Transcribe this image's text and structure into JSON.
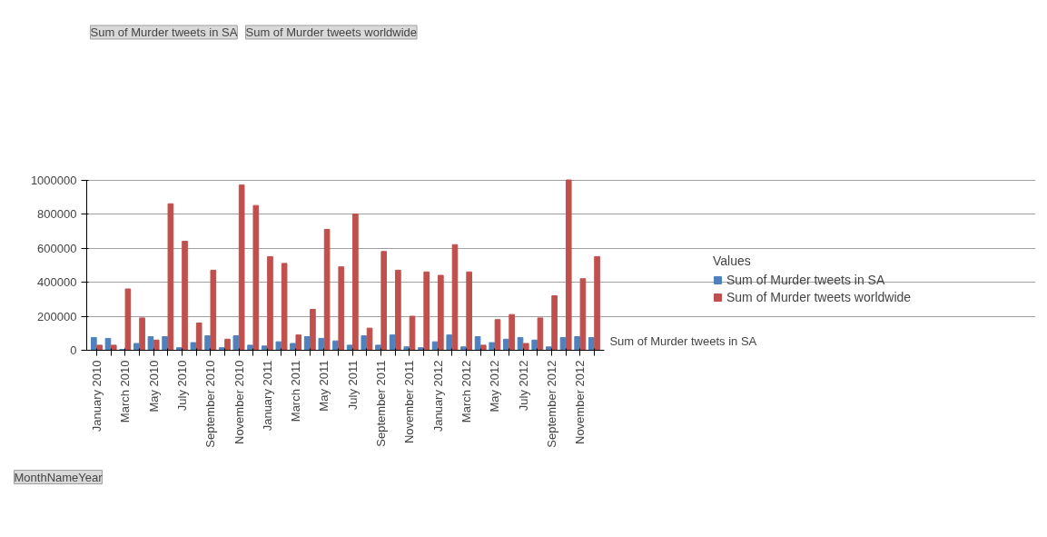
{
  "chart_data": {
    "type": "bar",
    "legend_title": "Values",
    "legend": "right",
    "grid": "y",
    "categories": [
      "January 2010",
      null,
      "March 2010",
      null,
      "May 2010",
      null,
      "July 2010",
      null,
      "September 2010",
      null,
      "November 2010",
      null,
      "January 2011",
      null,
      "March 2011",
      null,
      "May 2011",
      null,
      "July 2011",
      null,
      "September 2011",
      null,
      "November 2011",
      null,
      "January 2012",
      null,
      "March 2012",
      null,
      "May 2012",
      null,
      "July 2012",
      null,
      "September 2012",
      null,
      "November 2012",
      null
    ],
    "series": [
      {
        "name": "Sum of Murder tweets in SA",
        "color": "#4f81bd",
        "values": [
          75000,
          70000,
          5000,
          40000,
          80000,
          80000,
          15000,
          45000,
          85000,
          15000,
          85000,
          30000,
          25000,
          50000,
          40000,
          80000,
          70000,
          55000,
          30000,
          85000,
          30000,
          90000,
          20000,
          15000,
          50000,
          90000,
          20000,
          80000,
          45000,
          65000,
          75000,
          60000,
          20000,
          75000,
          80000,
          75000
        ]
      },
      {
        "name": "Sum of Murder tweets worldwide",
        "color": "#c0504d",
        "values": [
          30000,
          30000,
          360000,
          190000,
          60000,
          860000,
          640000,
          160000,
          470000,
          65000,
          970000,
          850000,
          550000,
          510000,
          90000,
          240000,
          710000,
          490000,
          800000,
          130000,
          580000,
          470000,
          200000,
          460000,
          440000,
          620000,
          460000,
          30000,
          180000,
          210000,
          40000,
          190000,
          320000,
          1000000,
          420000,
          550000
        ]
      }
    ],
    "ylim": [
      0,
      1000000
    ],
    "yticks": [
      0,
      200000,
      400000,
      600000,
      800000,
      1000000
    ],
    "annotations": [
      "Sum of Murder tweets in SA",
      "Sum of Murder tweets worldwide",
      "MonthNameYear",
      "Sum of Murder tweets in SA"
    ]
  }
}
